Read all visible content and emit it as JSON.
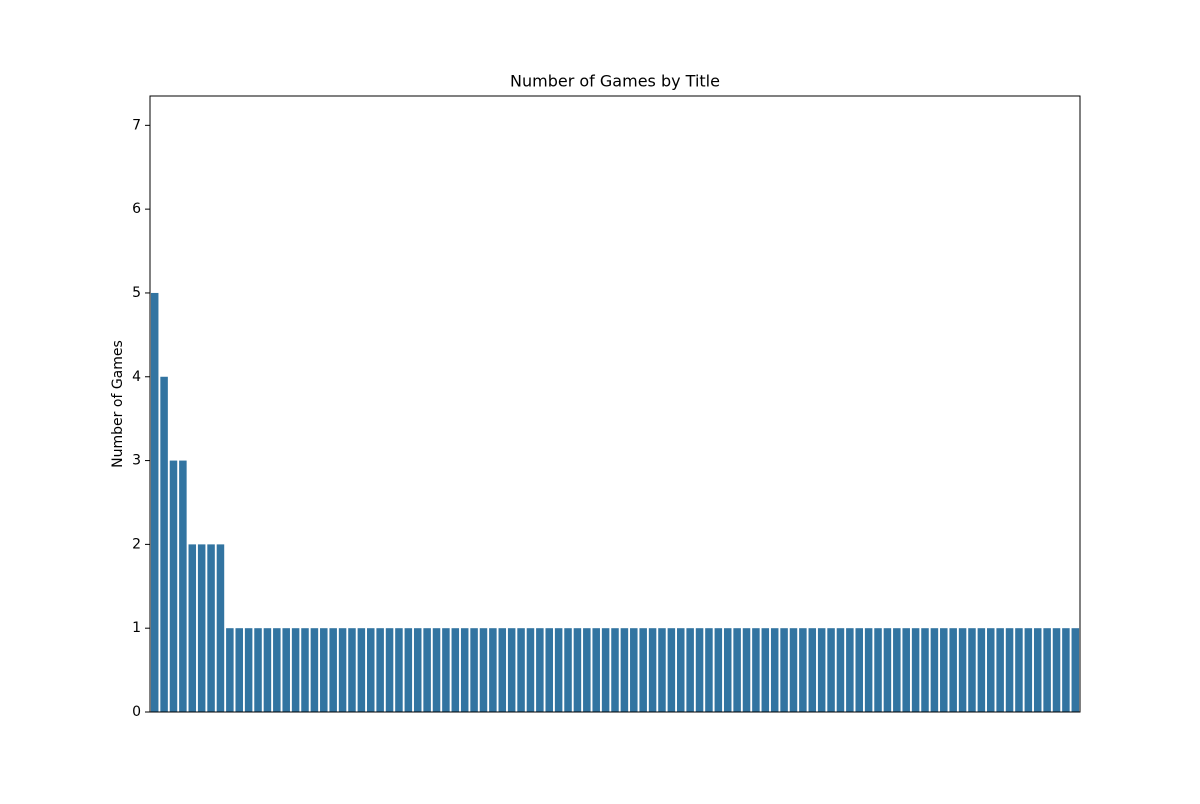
{
  "chart_data": {
    "type": "bar",
    "title": "Number of Games by Title",
    "y_label": "Number of Games",
    "color": "#3274a1",
    "ylim": [
      0,
      7.35
    ],
    "yticks": [
      0,
      1,
      2,
      3,
      4,
      5,
      6,
      7
    ],
    "categories": [
      null,
      null,
      null,
      null,
      null,
      null,
      null,
      null,
      null,
      null,
      null,
      null,
      null,
      null,
      null,
      null,
      null,
      null,
      null,
      null,
      null,
      null,
      null,
      null,
      null,
      null,
      null,
      null,
      null,
      null,
      null,
      null,
      null,
      null,
      null,
      null,
      null,
      null,
      null,
      null,
      null,
      null,
      null,
      null,
      null,
      null,
      null,
      null,
      null,
      null,
      null,
      null,
      null,
      null,
      null,
      null,
      null,
      null,
      null,
      null,
      null,
      null,
      null,
      null,
      null,
      null,
      null,
      null,
      null,
      null,
      null,
      null,
      null,
      null,
      null,
      null,
      null,
      null,
      null,
      null,
      null,
      null,
      null,
      null,
      null,
      null,
      null,
      null,
      null,
      null,
      null,
      null,
      null,
      null,
      null,
      null,
      null,
      null,
      null
    ],
    "values": [
      5,
      4,
      3,
      3,
      2,
      2,
      2,
      2,
      1,
      1,
      1,
      1,
      1,
      1,
      1,
      1,
      1,
      1,
      1,
      1,
      1,
      1,
      1,
      1,
      1,
      1,
      1,
      1,
      1,
      1,
      1,
      1,
      1,
      1,
      1,
      1,
      1,
      1,
      1,
      1,
      1,
      1,
      1,
      1,
      1,
      1,
      1,
      1,
      1,
      1,
      1,
      1,
      1,
      1,
      1,
      1,
      1,
      1,
      1,
      1,
      1,
      1,
      1,
      1,
      1,
      1,
      1,
      1,
      1,
      1,
      1,
      1,
      1,
      1,
      1,
      1,
      1,
      1,
      1,
      1,
      1,
      1,
      1,
      1,
      1,
      1,
      1,
      1,
      1,
      1,
      1,
      1,
      1,
      1,
      1,
      1,
      1,
      1,
      1
    ]
  }
}
